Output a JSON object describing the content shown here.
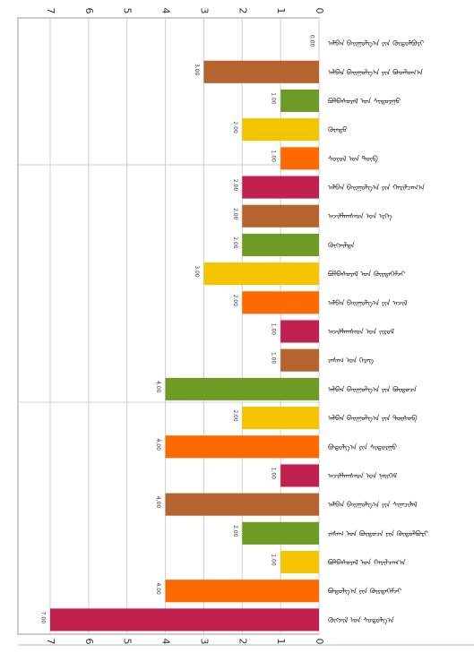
{
  "chart_data": {
    "type": "bar",
    "orientation": "horizontal",
    "note_rotation": "chart is rendered rotated 90 degrees clockwise; value axis runs right-to-left",
    "grid": true,
    "xlim": [
      0,
      7
    ],
    "ticks": [
      "0",
      "1",
      "2",
      "3",
      "4",
      "5",
      "6",
      "7"
    ],
    "categories": [
      "ᠠᠯᠪᠠᠨ ᠪᠠᠢᠭᠤᠯᠭ᠎ᠠ ᠶᠢᠨ ᠬᠥᠲᠦᠯᠪᠦᠷᠢ",
      "ᠠᠯᠪᠠᠨ ᠪᠠᠢᠭᠤᠯᠭ᠎ᠠ ᠶᠢᠨ ᠪᠣᠳᠯᠣᠭ᠎ᠠ",
      "ᠪᠣᠯᠪᠠᠰᠤᠷᠠᠯ ᠤᠨ ᠰᠢᠳᠤᠷᠭᠤ",
      "ᠭᠦᠨᠳᠦ",
      "ᠰᠣᠶᠣᠯ ᠤᠨ ᠲᠥᠪ",
      "ᠠᠯᠪᠠᠨ ᠪᠠᠢᠭᠤᠯᠭ᠎ᠠ ᠶᠢᠨ ᠬᠠᠷᠢᠯᠴᠠᠭ᠎ᠠ",
      "ᠠᠵᠢᠯᠯᠠᠭᠰᠠᠳ ᠤᠨ ᠡᠷᠬᠡ",
      "ᠬᠥᠭᠵᠢᠯᠲᠡ",
      "ᠪᠣᠯᠪᠠᠰᠤᠷᠠᠯ ᠤᠨ ᠬᠦᠷᠲᠡᠭᠡᠮᠵᠢ",
      "ᠠᠯᠪᠠᠨ ᠪᠠᠢᠭᠤᠯᠭ᠎ᠠ ᠶᠢᠨ ᠠᠵᠢᠯ",
      "ᠠᠵᠢᠯᠯᠠᠭᠰᠠᠳ ᠤᠨ ᠵᠢᠷᠤᠮ",
      "ᠵᠠᠰᠠᠭ ᠤᠨ ᠬᠡᠷᠡᠭ",
      "ᠠᠯᠪᠠᠨ ᠪᠠᠢᠭᠤᠯᠭ᠎ᠠ ᠶᠢᠨ ᠪᠦᠲᠦᠴᠡ",
      "ᠠᠯᠪᠠᠨ ᠪᠠᠢᠭᠤᠯᠭ᠎ᠠ ᠶᠢᠨ ᠲᠥᠰᠥᠪ",
      "ᠪᠣᠳᠣᠯᠭ᠎ᠠ ᠶᠢᠨ ᠰᠢᠳᠤᠷᠭᠤ",
      "ᠠᠵᠢᠯᠯᠠᠭᠰᠠᠳ ᠤᠨ ᠨᠡᠢᠭᠡᠮ",
      "ᠠᠯᠪᠠᠨ ᠪᠠᠢᠭᠤᠯᠭ᠎ᠠ ᠶᠢᠨ ᠰᠢᠨᠡᠴᠢᠯᠡᠯ",
      "ᠵᠠᠰᠠᠭ ᠤᠨ ᠪᠦᠲᠦᠴᠡ ᠶᠢᠨ ᠬᠥᠲᠦᠯᠪᠦᠷᠢ",
      "ᠪᠣᠯᠪᠠᠰᠤᠷᠠᠯ ᠤᠨ ᠬᠠᠷᠢᠯᠴᠠᠭ᠎ᠠ",
      "ᠪᠣᠳᠣᠯᠭ᠎ᠠ ᠶᠢᠨ ᠬᠦᠷᠲᠡᠭᠡᠮᠵᠢ",
      "ᠬᠥᠭᠵᠢᠯ ᠤᠨ ᠰᠤᠳᠤᠯᠭ᠎ᠠ"
    ],
    "values": [
      0,
      3,
      1,
      2,
      1,
      2,
      2,
      2,
      3,
      2,
      1,
      1,
      4,
      2,
      4,
      1,
      4,
      2,
      1,
      4,
      7
    ],
    "value_labels": [
      "0.00",
      "3.00",
      "1.00",
      "2.00",
      "1.00",
      "2.00",
      "2.00",
      "2.00",
      "3.00",
      "2.00",
      "1.00",
      "1.00",
      "4.00",
      "2.00",
      "4.00",
      "1.00",
      "4.00",
      "2.00",
      "1.00",
      "4.00",
      "7.00"
    ],
    "colors": [
      "#ffffff",
      "#b5632f",
      "#6e9a26",
      "#f5c400",
      "#ff6a00",
      "#c0214e",
      "#b5632f",
      "#6e9a26",
      "#f5c400",
      "#ff6a00",
      "#c0214e",
      "#b5632f",
      "#6e9a26",
      "#f5c400",
      "#ff6a00",
      "#c0214e",
      "#b5632f",
      "#6e9a26",
      "#f5c400",
      "#ff6a00",
      "#c0214e"
    ]
  }
}
